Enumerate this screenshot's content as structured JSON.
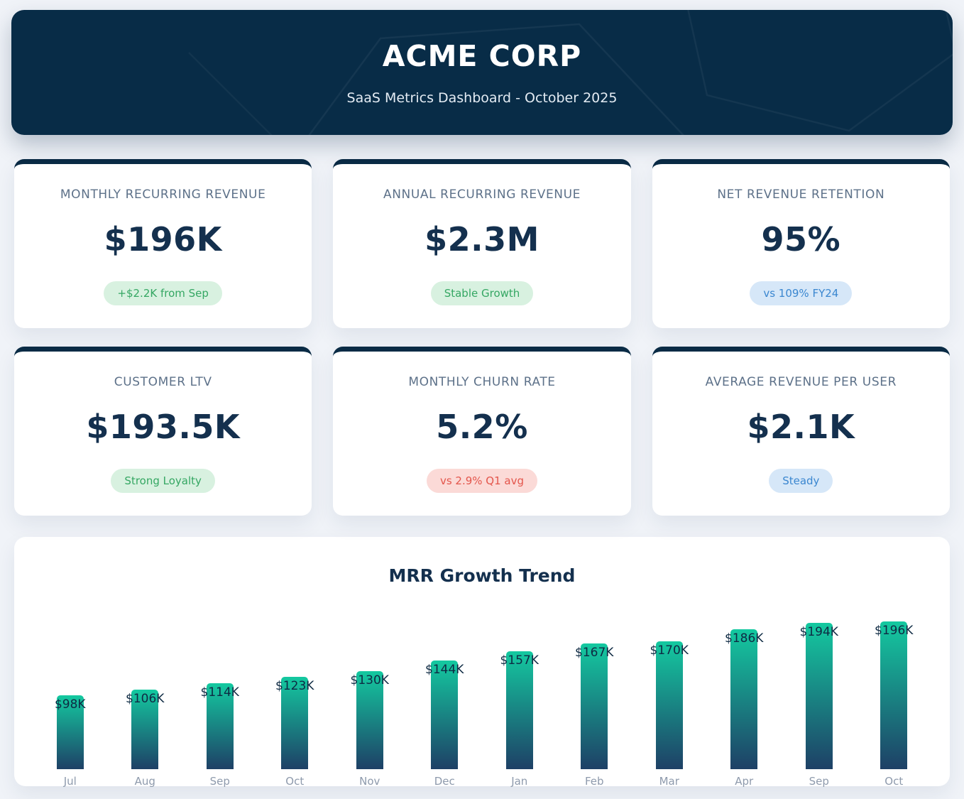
{
  "header": {
    "title": "ACME CORP",
    "subtitle": "SaaS Metrics Dashboard - October 2025"
  },
  "metrics": [
    {
      "label": "MONTHLY RECURRING REVENUE",
      "value": "$196K",
      "badge": "+$2.2K from Sep",
      "badge_type": "green"
    },
    {
      "label": "ANNUAL RECURRING REVENUE",
      "value": "$2.3M",
      "badge": "Stable Growth",
      "badge_type": "green"
    },
    {
      "label": "NET REVENUE RETENTION",
      "value": "95%",
      "badge": "vs 109% FY24",
      "badge_type": "blue"
    },
    {
      "label": "CUSTOMER LTV",
      "value": "$193.5K",
      "badge": "Strong Loyalty",
      "badge_type": "green"
    },
    {
      "label": "MONTHLY CHURN RATE",
      "value": "5.2%",
      "badge": "vs 2.9% Q1 avg",
      "badge_type": "red"
    },
    {
      "label": "AVERAGE REVENUE PER USER",
      "value": "$2.1K",
      "badge": "Steady",
      "badge_type": "blue"
    }
  ],
  "chart_data": {
    "type": "bar",
    "title": "MRR Growth Trend",
    "categories": [
      "Jul",
      "Aug",
      "Sep",
      "Oct",
      "Nov",
      "Dec",
      "Jan",
      "Feb",
      "Mar",
      "Apr",
      "Sep",
      "Oct"
    ],
    "values": [
      98,
      106,
      114,
      123,
      130,
      144,
      157,
      167,
      170,
      186,
      194,
      196
    ],
    "value_labels": [
      "$98K",
      "$106K",
      "$114K",
      "$123K",
      "$130K",
      "$144K",
      "$157K",
      "$167K",
      "$170K",
      "$186K",
      "$194K",
      "$196K"
    ],
    "xlabel": "",
    "ylabel": "",
    "ylim": [
      0,
      200
    ],
    "grid": false,
    "legend": false,
    "bar_gradient_top": "#14c9a0",
    "bar_gradient_bottom": "#1e4066"
  },
  "colors": {
    "page_background": "#f0f3f8",
    "header_background": "#082c47",
    "card_accent": "#0a2b45",
    "value_text": "#14304e",
    "label_text": "#5d7189",
    "badge_green_bg": "#d8f1e0",
    "badge_green_text": "#35a763",
    "badge_blue_bg": "#d6e7f8",
    "badge_blue_text": "#3b87d0",
    "badge_red_bg": "#fbdad7",
    "badge_red_text": "#e4564c"
  }
}
